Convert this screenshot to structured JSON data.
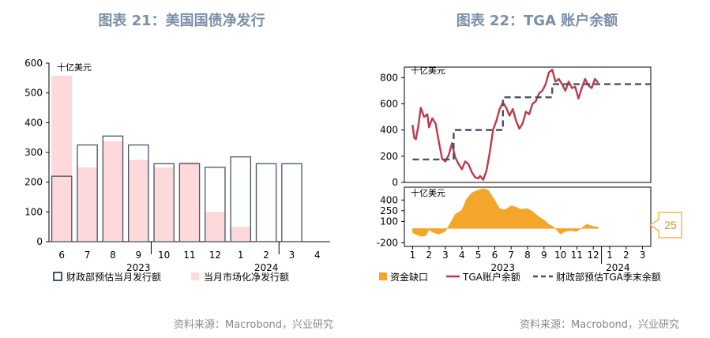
{
  "titles": {
    "left": "图表 21：美国国债净发行",
    "right": "图表 22：TGA 账户余额"
  },
  "sources": {
    "left": "资料来源：Macrobond，兴业研究",
    "right": "资料来源：Macrobond，兴业研究"
  },
  "badge": "25",
  "colors": {
    "title": "#7a8fa8",
    "outline": "#44546a",
    "pink": "#fdd9dc",
    "tga": "#c0394b",
    "gap": "#f4a62a",
    "dash": "#44546a"
  },
  "chart_data": [
    {
      "type": "bar",
      "title": "图表 21：美国国债净发行",
      "unit": "十亿美元",
      "categories": [
        "6",
        "7",
        "8",
        "9",
        "10",
        "11",
        "12",
        "1",
        "2",
        "3",
        "4"
      ],
      "year_labels": [
        {
          "label": "2023",
          "after_index": 3.5
        },
        {
          "label": "2024",
          "after_index": 8.5
        }
      ],
      "ylim": [
        0,
        600
      ],
      "yticks": [
        0,
        100,
        200,
        300,
        400,
        500,
        600
      ],
      "series": [
        {
          "name": "财政部预估当月发行额",
          "style": "outline",
          "values": [
            220,
            325,
            355,
            325,
            262,
            262,
            250,
            285,
            262,
            262,
            null
          ]
        },
        {
          "name": "当月市场化净发行额",
          "style": "fill",
          "values": [
            558,
            250,
            338,
            275,
            250,
            268,
            100,
            50,
            3,
            3,
            null
          ]
        }
      ],
      "legend": "bottom"
    },
    {
      "type": "line",
      "title": "图表 22：TGA 账户余额",
      "unit": "十亿美元",
      "x_ticks": [
        "1",
        "2",
        "3",
        "4",
        "5",
        "6",
        "7",
        "8",
        "9",
        "10",
        "11",
        "12",
        "1",
        "2",
        "3"
      ],
      "year_labels": [
        {
          "label": "2023",
          "at": 6.5
        },
        {
          "label": "2024",
          "at": 13.5
        }
      ],
      "upper": {
        "ylim": [
          0,
          880
        ],
        "yticks": [
          0,
          200,
          400,
          600,
          800
        ],
        "series": [
          {
            "name": "TGA账户余额",
            "style": "line",
            "x": [
              1.0,
              1.1,
              1.2,
              1.35,
              1.5,
              1.7,
              1.9,
              2.0,
              2.2,
              2.4,
              2.6,
              2.8,
              3.0,
              3.2,
              3.4,
              3.5,
              3.6,
              3.8,
              4.0,
              4.2,
              4.4,
              4.6,
              4.8,
              5.0,
              5.1,
              5.3,
              5.5,
              5.7,
              5.9,
              6.1,
              6.3,
              6.5,
              6.7,
              6.9,
              7.1,
              7.3,
              7.5,
              7.7,
              7.9,
              8.1,
              8.3,
              8.5,
              8.7,
              8.9,
              9.1,
              9.3,
              9.5,
              9.7,
              9.9,
              10.1,
              10.3,
              10.5,
              10.7,
              10.9,
              11.1,
              11.3,
              11.5,
              11.7,
              11.9,
              12.1,
              12.3
            ],
            "values": [
              440,
              340,
              330,
              430,
              570,
              500,
              520,
              420,
              490,
              450,
              310,
              180,
              160,
              210,
              300,
              240,
              190,
              140,
              100,
              160,
              140,
              80,
              40,
              30,
              50,
              20,
              90,
              230,
              400,
              470,
              560,
              610,
              570,
              510,
              560,
              470,
              410,
              450,
              540,
              520,
              600,
              620,
              680,
              700,
              750,
              840,
              860,
              770,
              790,
              750,
              700,
              770,
              720,
              730,
              640,
              720,
              790,
              740,
              720,
              790,
              760
            ]
          },
          {
            "name": "财政部预估TGA季末余额",
            "style": "dash",
            "x": [
              1,
              3.5,
              3.5,
              6.5,
              6.5,
              9.5,
              9.5,
              15.5
            ],
            "values": [
              175,
              175,
              400,
              400,
              650,
              650,
              750,
              750
            ]
          }
        ]
      },
      "lower": {
        "ylim": [
          -250,
          580
        ],
        "yticks": [
          -200,
          100,
          250,
          400
        ],
        "series": [
          {
            "name": "资金缺口",
            "style": "area",
            "x": [
              1.0,
              1.2,
              1.5,
              1.8,
              2.0,
              2.3,
              2.6,
              3.0,
              3.3,
              3.6,
              4.0,
              4.3,
              4.6,
              5.0,
              5.3,
              5.6,
              6.0,
              6.3,
              6.6,
              7.0,
              7.3,
              7.6,
              8.0,
              8.3,
              8.6,
              9.0,
              9.3,
              9.6,
              10.0,
              10.3,
              10.6,
              11.0,
              11.3,
              11.6,
              12.0,
              12.3
            ],
            "values": [
              -60,
              -80,
              -110,
              -100,
              -20,
              -60,
              -80,
              -40,
              80,
              200,
              260,
              420,
              500,
              540,
              560,
              540,
              400,
              280,
              260,
              320,
              300,
              270,
              280,
              240,
              180,
              120,
              60,
              20,
              -80,
              -40,
              -30,
              -40,
              10,
              60,
              30,
              20
            ]
          }
        ]
      },
      "legend": "bottom"
    }
  ]
}
